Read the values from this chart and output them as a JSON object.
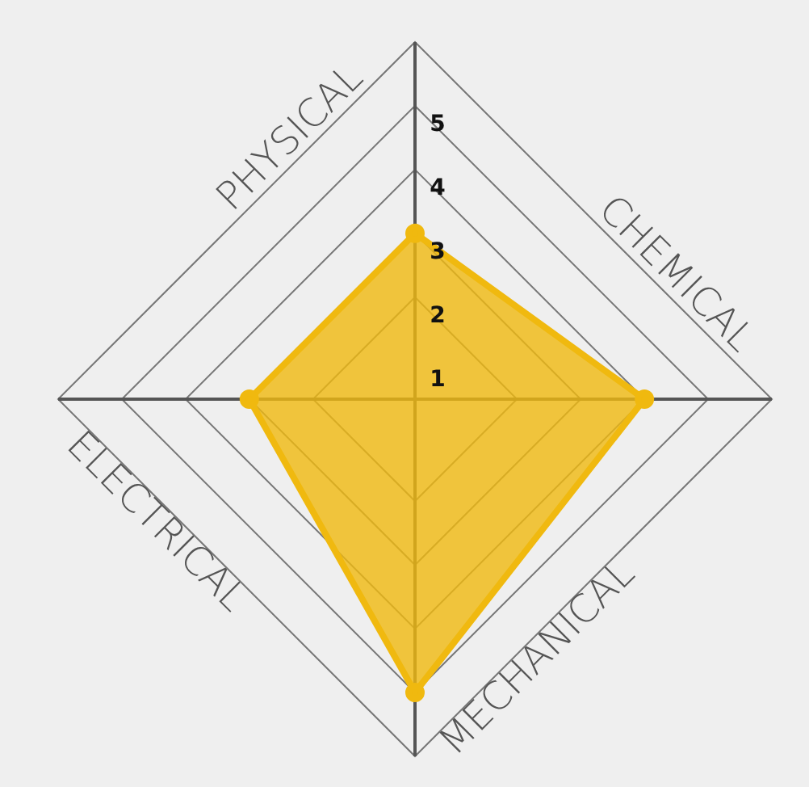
{
  "chart_data": {
    "type": "radar",
    "categories": [
      "PHYSICAL",
      "CHEMICAL",
      "MECHANICAL",
      "ELECTRICAL"
    ],
    "series": [
      {
        "color": "#f0b90f",
        "values": [
          3,
          4,
          5,
          3
        ]
      }
    ],
    "ylim": [
      0.4,
      6
    ],
    "yticks": [
      1,
      2,
      3,
      4,
      5
    ],
    "grid": true,
    "marker": "circle",
    "legend": false
  }
}
